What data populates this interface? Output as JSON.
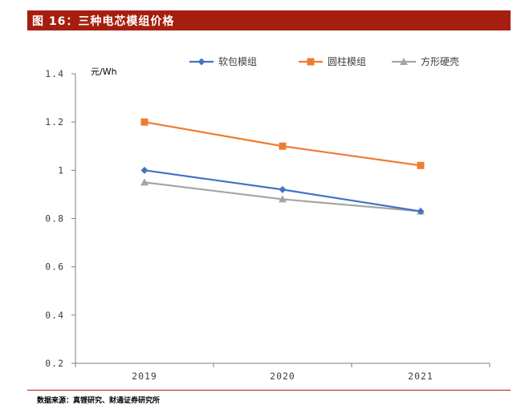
{
  "figure": {
    "title": "图 16：三种电芯模组价格",
    "source": "数据来源：真锂研究、财通证券研究所"
  },
  "colors": {
    "title_bar": "#a61e0f",
    "series": [
      "#4472c4",
      "#ed7d31",
      "#a5a5a5"
    ],
    "axis": "#7f7f7f",
    "text": "#404040"
  },
  "chart_data": {
    "type": "line",
    "title": "三种电芯模组价格",
    "ylabel": "元/Wh",
    "xlabel": "",
    "categories": [
      "2019",
      "2020",
      "2021"
    ],
    "ylim": [
      0.2,
      1.4
    ],
    "yticks": [
      0.2,
      0.4,
      0.6,
      0.8,
      1.0,
      1.2,
      1.4
    ],
    "ytick_labels": [
      "0.2",
      "0.4",
      "0.6",
      "0.8",
      "1",
      "1.2",
      "1.4"
    ],
    "grid": false,
    "legend_position": "top",
    "series": [
      {
        "name": "软包模组",
        "marker": "diamond",
        "values": [
          1.0,
          0.92,
          0.83
        ]
      },
      {
        "name": "圆柱模组",
        "marker": "square",
        "values": [
          1.2,
          1.1,
          1.02
        ]
      },
      {
        "name": "方形硬壳",
        "marker": "triangle",
        "values": [
          0.95,
          0.88,
          0.83
        ]
      }
    ]
  }
}
